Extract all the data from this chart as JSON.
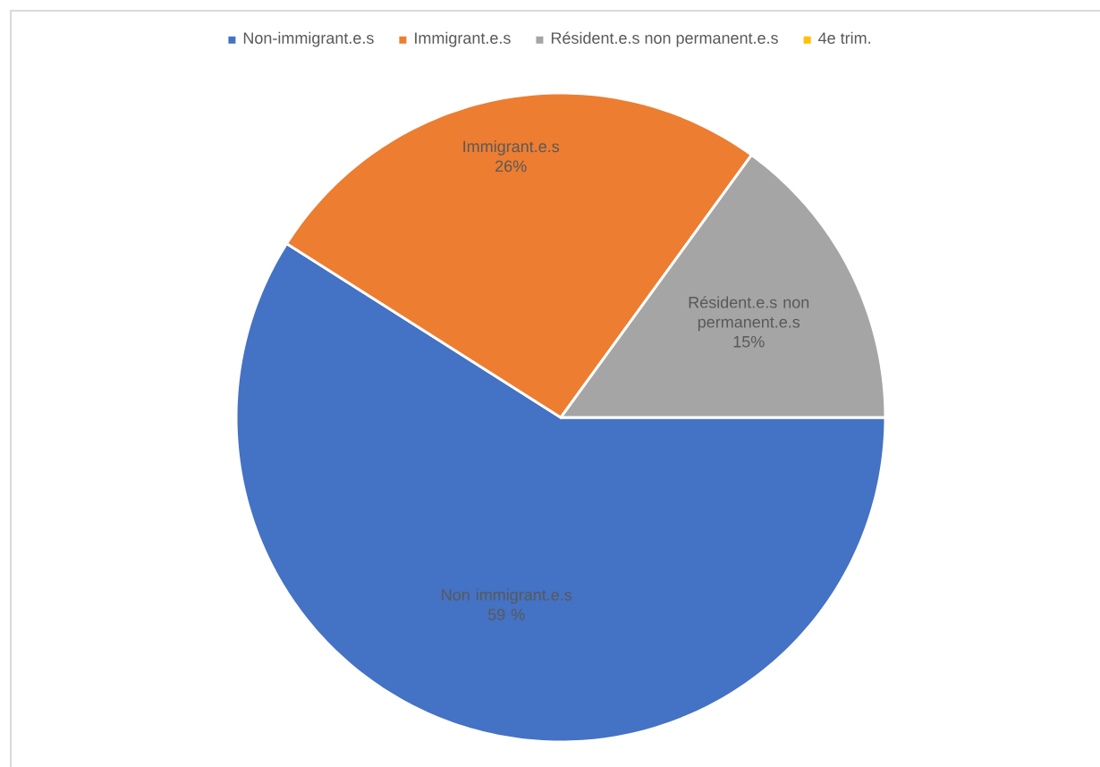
{
  "chart_data": {
    "type": "pie",
    "categories": [
      "Non-immigrant.e.s",
      "Immigrant.e.s",
      "Résident.e.s non permanent.e.s",
      "4e trim."
    ],
    "values": [
      59,
      26,
      15,
      0
    ],
    "colors": [
      "#4472c4",
      "#ed7d31",
      "#a5a5a5",
      "#ffc000"
    ],
    "value_labels": [
      "Non immigrant.e.s 59 %",
      "Immigrant.e.s 26%",
      "Résident.e.s non permanent.e.s 15%",
      null
    ],
    "legend": "top"
  }
}
